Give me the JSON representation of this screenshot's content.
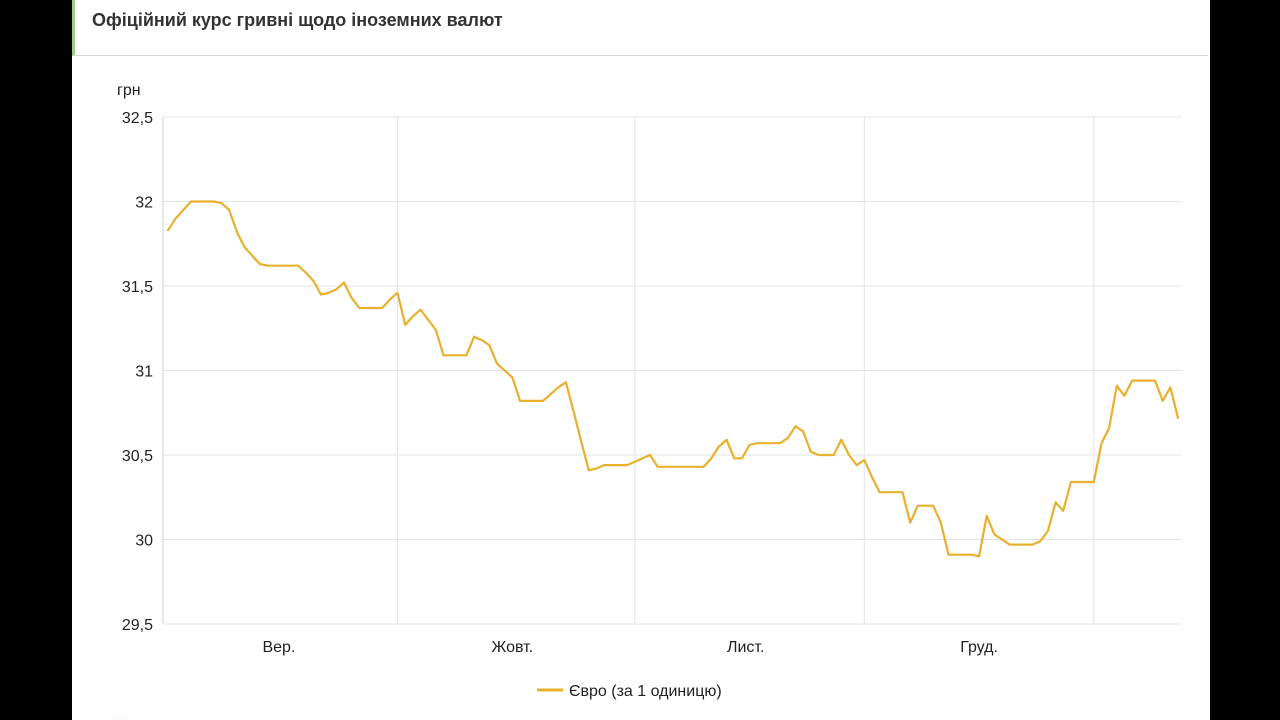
{
  "header": {
    "title": "Офіційний курс гривні щодо іноземних валют"
  },
  "chart_data": {
    "type": "line",
    "ylabel": "грн",
    "ylim": [
      29.5,
      32.5
    ],
    "yticks": [
      {
        "value": 32.5,
        "label": "32,5"
      },
      {
        "value": 32,
        "label": "32"
      },
      {
        "value": 31.5,
        "label": "31,5"
      },
      {
        "value": 31,
        "label": "31"
      },
      {
        "value": 30.5,
        "label": "30,5"
      },
      {
        "value": 30,
        "label": "30"
      },
      {
        "value": 29.5,
        "label": "29,5"
      }
    ],
    "xlim": [
      0,
      132
    ],
    "xticks": [
      {
        "value": 14.5,
        "label": "Вер."
      },
      {
        "value": 45,
        "label": "Жовт."
      },
      {
        "value": 75.5,
        "label": "Лист."
      },
      {
        "value": 106,
        "label": "Груд."
      }
    ],
    "xgrid": [
      30,
      61,
      91,
      121
    ],
    "grid": true,
    "legend_position": "bottom",
    "colors": {
      "series": "#e8b02c",
      "grid": "#e3e3e3",
      "axis": "#d0d0d0"
    },
    "series": [
      {
        "name": "Євро (за 1 одиницю)",
        "color": "#e8b02c",
        "points": [
          [
            0,
            31.83
          ],
          [
            1,
            31.9
          ],
          [
            2,
            31.95
          ],
          [
            3,
            32
          ],
          [
            4,
            32
          ],
          [
            5,
            32
          ],
          [
            6,
            32
          ],
          [
            7,
            31.99
          ],
          [
            8,
            31.95
          ],
          [
            9,
            31.82
          ],
          [
            10,
            31.73
          ],
          [
            11,
            31.68
          ],
          [
            12,
            31.63
          ],
          [
            13,
            31.62
          ],
          [
            14,
            31.62
          ],
          [
            15,
            31.62
          ],
          [
            16,
            31.62
          ],
          [
            17,
            31.62
          ],
          [
            18,
            31.58
          ],
          [
            19,
            31.53
          ],
          [
            20,
            31.45
          ],
          [
            21,
            31.46
          ],
          [
            22,
            31.48
          ],
          [
            23,
            31.52
          ],
          [
            24,
            31.43
          ],
          [
            25,
            31.37
          ],
          [
            26,
            31.37
          ],
          [
            27,
            31.37
          ],
          [
            28,
            31.37
          ],
          [
            29,
            31.42
          ],
          [
            30,
            31.46
          ],
          [
            31,
            31.27
          ],
          [
            32,
            31.32
          ],
          [
            33,
            31.36
          ],
          [
            34,
            31.3
          ],
          [
            35,
            31.24
          ],
          [
            36,
            31.09
          ],
          [
            37,
            31.09
          ],
          [
            38,
            31.09
          ],
          [
            39,
            31.09
          ],
          [
            40,
            31.2
          ],
          [
            41,
            31.18
          ],
          [
            42,
            31.15
          ],
          [
            43,
            31.04
          ],
          [
            44,
            31
          ],
          [
            45,
            30.96
          ],
          [
            46,
            30.82
          ],
          [
            47,
            30.82
          ],
          [
            48,
            30.82
          ],
          [
            49,
            30.82
          ],
          [
            50,
            30.86
          ],
          [
            51,
            30.9
          ],
          [
            52,
            30.93
          ],
          [
            53,
            30.76
          ],
          [
            54,
            30.58
          ],
          [
            55,
            30.41
          ],
          [
            56,
            30.42
          ],
          [
            57,
            30.44
          ],
          [
            58,
            30.44
          ],
          [
            59,
            30.44
          ],
          [
            60,
            30.44
          ],
          [
            61,
            30.46
          ],
          [
            62,
            30.48
          ],
          [
            63,
            30.5
          ],
          [
            64,
            30.43
          ],
          [
            65,
            30.43
          ],
          [
            66,
            30.43
          ],
          [
            67,
            30.43
          ],
          [
            68,
            30.43
          ],
          [
            69,
            30.43
          ],
          [
            70,
            30.43
          ],
          [
            71,
            30.48
          ],
          [
            72,
            30.55
          ],
          [
            73,
            30.59
          ],
          [
            74,
            30.48
          ],
          [
            75,
            30.48
          ],
          [
            76,
            30.56
          ],
          [
            77,
            30.57
          ],
          [
            78,
            30.57
          ],
          [
            79,
            30.57
          ],
          [
            80,
            30.57
          ],
          [
            81,
            30.6
          ],
          [
            82,
            30.67
          ],
          [
            83,
            30.64
          ],
          [
            84,
            30.52
          ],
          [
            85,
            30.5
          ],
          [
            86,
            30.5
          ],
          [
            87,
            30.5
          ],
          [
            88,
            30.59
          ],
          [
            89,
            30.5
          ],
          [
            90,
            30.44
          ],
          [
            91,
            30.47
          ],
          [
            92,
            30.37
          ],
          [
            93,
            30.28
          ],
          [
            94,
            30.28
          ],
          [
            95,
            30.28
          ],
          [
            96,
            30.28
          ],
          [
            97,
            30.1
          ],
          [
            98,
            30.2
          ],
          [
            99,
            30.2
          ],
          [
            100,
            30.2
          ],
          [
            101,
            30.1
          ],
          [
            102,
            29.91
          ],
          [
            103,
            29.91
          ],
          [
            104,
            29.91
          ],
          [
            105,
            29.91
          ],
          [
            106,
            29.9
          ],
          [
            107,
            30.14
          ],
          [
            108,
            30.03
          ],
          [
            109,
            30
          ],
          [
            110,
            29.97
          ],
          [
            111,
            29.97
          ],
          [
            112,
            29.97
          ],
          [
            113,
            29.97
          ],
          [
            114,
            29.99
          ],
          [
            115,
            30.05
          ],
          [
            116,
            30.22
          ],
          [
            117,
            30.17
          ],
          [
            118,
            30.34
          ],
          [
            119,
            30.34
          ],
          [
            120,
            30.34
          ],
          [
            121,
            30.34
          ],
          [
            122,
            30.57
          ],
          [
            123,
            30.66
          ],
          [
            124,
            30.91
          ],
          [
            125,
            30.85
          ],
          [
            126,
            30.94
          ],
          [
            127,
            30.94
          ],
          [
            128,
            30.94
          ],
          [
            129,
            30.94
          ],
          [
            130,
            30.82
          ],
          [
            131,
            30.9
          ],
          [
            132,
            30.72
          ]
        ]
      }
    ]
  }
}
